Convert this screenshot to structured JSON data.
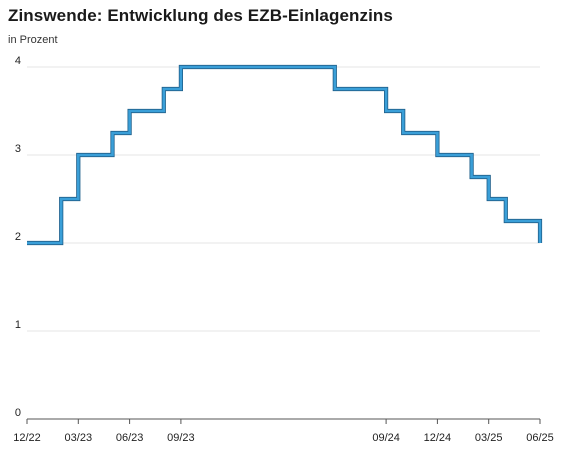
{
  "chart_data": {
    "type": "line",
    "step": true,
    "title": "Zinswende: Entwicklung des EZB-Einlagenzins",
    "subtitle": "in Prozent",
    "xlabel": "",
    "ylabel": "",
    "ylim": [
      0,
      4
    ],
    "yticks": [
      0,
      1,
      2,
      3,
      4
    ],
    "xlim": [
      "2022-12",
      "2025-06"
    ],
    "xticks": [
      {
        "label": "12/22",
        "date": "2022-12"
      },
      {
        "label": "03/23",
        "date": "2023-03"
      },
      {
        "label": "06/23",
        "date": "2023-06"
      },
      {
        "label": "09/23",
        "date": "2023-09"
      },
      {
        "label": "09/24",
        "date": "2024-09"
      },
      {
        "label": "12/24",
        "date": "2024-12"
      },
      {
        "label": "03/25",
        "date": "2025-03"
      },
      {
        "label": "06/25",
        "date": "2025-06"
      }
    ],
    "grid": true,
    "color": "#3a9fd8",
    "series": [
      {
        "name": "",
        "points": [
          {
            "date": "2022-12",
            "value": 2.0
          },
          {
            "date": "2023-02",
            "value": 2.5
          },
          {
            "date": "2023-03",
            "value": 3.0
          },
          {
            "date": "2023-05",
            "value": 3.25
          },
          {
            "date": "2023-06",
            "value": 3.5
          },
          {
            "date": "2023-08",
            "value": 3.75
          },
          {
            "date": "2023-09",
            "value": 4.0
          },
          {
            "date": "2024-06",
            "value": 3.75
          },
          {
            "date": "2024-09",
            "value": 3.5
          },
          {
            "date": "2024-10",
            "value": 3.25
          },
          {
            "date": "2024-12",
            "value": 3.0
          },
          {
            "date": "2025-02",
            "value": 2.75
          },
          {
            "date": "2025-03",
            "value": 2.5
          },
          {
            "date": "2025-04",
            "value": 2.25
          },
          {
            "date": "2025-06",
            "value": 2.0
          }
        ]
      }
    ]
  }
}
